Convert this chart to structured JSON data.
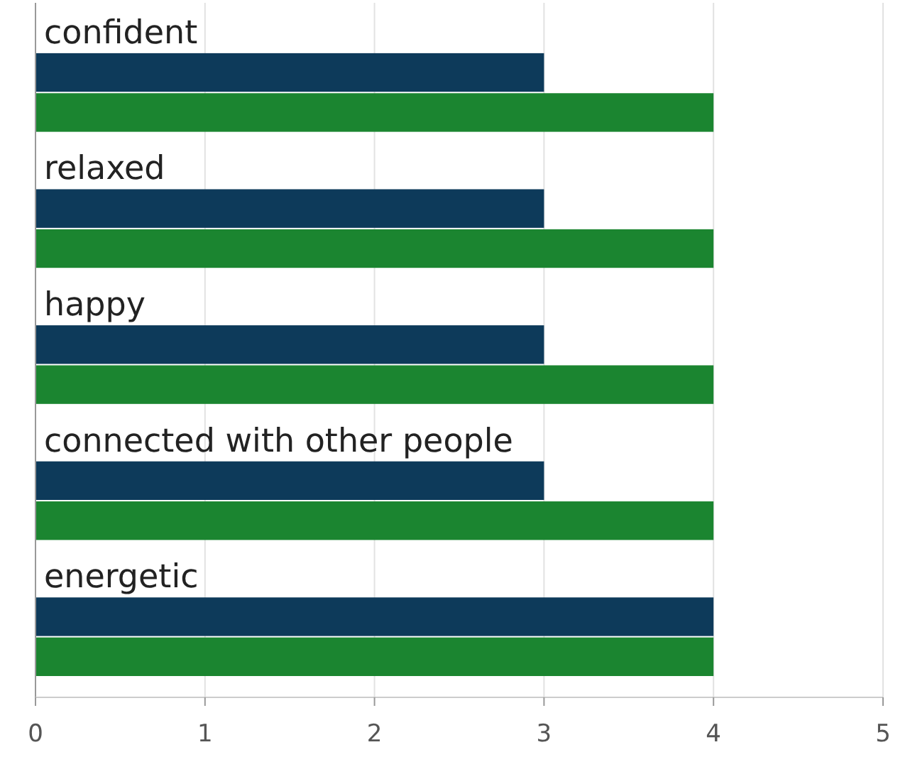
{
  "chart_data": {
    "type": "bar",
    "orientation": "horizontal",
    "categories": [
      "confident",
      "relaxed",
      "happy",
      "connected with other people",
      "energetic"
    ],
    "series": [
      {
        "color": "#0d3a5a",
        "values": [
          3,
          3,
          3,
          3,
          4
        ]
      },
      {
        "color": "#1b8530",
        "values": [
          4,
          4,
          4,
          4,
          4
        ]
      }
    ],
    "xlim": [
      0,
      5
    ],
    "xticks": [
      0,
      1,
      2,
      3,
      4,
      5
    ],
    "grid": "x"
  }
}
